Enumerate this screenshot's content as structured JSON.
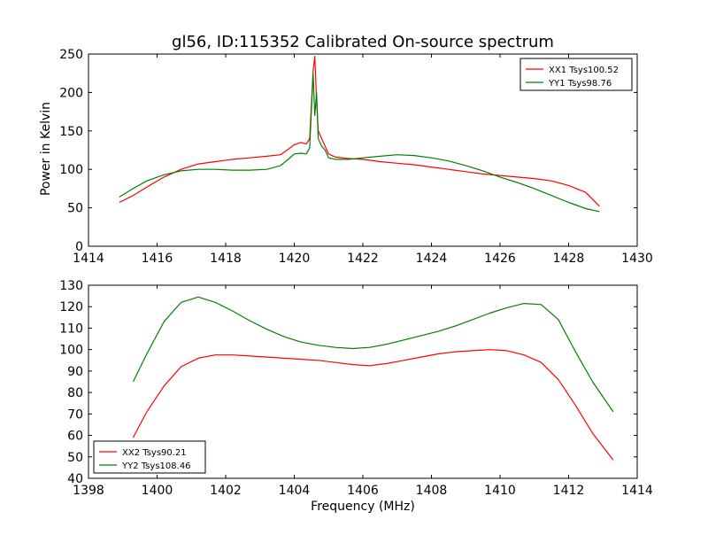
{
  "figure": {
    "title": "gl56, ID:115352 Calibrated On-source spectrum",
    "ylabel": "Power in Kelvin",
    "xlabel": "Frequency (MHz)"
  },
  "chart_data": [
    {
      "type": "line",
      "title": "gl56, ID:115352 Calibrated On-source spectrum",
      "xlabel": "",
      "ylabel": "Power in Kelvin",
      "xlim": [
        1414,
        1430
      ],
      "ylim": [
        0,
        250
      ],
      "xticks": [
        1414,
        1416,
        1418,
        1420,
        1422,
        1424,
        1426,
        1428,
        1430
      ],
      "yticks": [
        0,
        50,
        100,
        150,
        200,
        250
      ],
      "grid": false,
      "legend_position": "upper right",
      "series": [
        {
          "name": "XX1 Tsys100.52",
          "color": "#ff0000",
          "x": [
            1414.9,
            1415.3,
            1415.7,
            1416.2,
            1416.7,
            1417.2,
            1417.7,
            1418.2,
            1418.7,
            1419.2,
            1419.6,
            1419.85,
            1420.0,
            1420.2,
            1420.35,
            1420.45,
            1420.55,
            1420.6,
            1420.65,
            1420.7,
            1420.8,
            1420.9,
            1421.0,
            1421.2,
            1421.6,
            1422.0,
            1422.5,
            1423.0,
            1423.5,
            1424.0,
            1424.5,
            1425.0,
            1425.5,
            1426.0,
            1426.5,
            1427.0,
            1427.5,
            1428.0,
            1428.5,
            1428.9
          ],
          "y": [
            57,
            66,
            77,
            90,
            100,
            107,
            110,
            113,
            115,
            117,
            119,
            127,
            132,
            135,
            133,
            140,
            228,
            247,
            190,
            150,
            140,
            130,
            120,
            116,
            114,
            113,
            110,
            108,
            106,
            103,
            100,
            97,
            94,
            92,
            90,
            88,
            85,
            79,
            70,
            52
          ]
        },
        {
          "name": "YY1 Tsys98.76",
          "color": "#008000",
          "x": [
            1414.9,
            1415.3,
            1415.7,
            1416.2,
            1416.7,
            1417.2,
            1417.7,
            1418.2,
            1418.7,
            1419.2,
            1419.6,
            1419.85,
            1420.0,
            1420.2,
            1420.35,
            1420.45,
            1420.55,
            1420.6,
            1420.65,
            1420.7,
            1420.8,
            1420.9,
            1421.0,
            1421.2,
            1421.6,
            1422.0,
            1422.5,
            1423.0,
            1423.5,
            1424.0,
            1424.5,
            1425.0,
            1425.5,
            1426.0,
            1426.5,
            1427.0,
            1427.5,
            1428.0,
            1428.5,
            1428.9
          ],
          "y": [
            64,
            75,
            85,
            93,
            98,
            100,
            100,
            99,
            99,
            100,
            105,
            114,
            120,
            121,
            120,
            128,
            225,
            170,
            200,
            140,
            130,
            125,
            115,
            113,
            113,
            115,
            117,
            119,
            118,
            115,
            111,
            105,
            98,
            90,
            83,
            75,
            66,
            57,
            49,
            45
          ]
        }
      ]
    },
    {
      "type": "line",
      "title": "",
      "xlabel": "Frequency (MHz)",
      "ylabel": "",
      "xlim": [
        1398,
        1414
      ],
      "ylim": [
        40,
        130
      ],
      "xticks": [
        1398,
        1400,
        1402,
        1404,
        1406,
        1408,
        1410,
        1412,
        1414
      ],
      "yticks": [
        40,
        50,
        60,
        70,
        80,
        90,
        100,
        110,
        120,
        130
      ],
      "grid": false,
      "legend_position": "lower left",
      "series": [
        {
          "name": "XX2 Tsys90.21",
          "color": "#ff0000",
          "x": [
            1399.3,
            1399.7,
            1400.2,
            1400.7,
            1401.2,
            1401.7,
            1402.2,
            1402.7,
            1403.2,
            1403.7,
            1404.2,
            1404.7,
            1405.2,
            1405.7,
            1406.2,
            1406.7,
            1407.2,
            1407.7,
            1408.2,
            1408.7,
            1409.2,
            1409.7,
            1410.2,
            1410.7,
            1411.2,
            1411.7,
            1412.2,
            1412.7,
            1413.3
          ],
          "y": [
            59,
            71,
            83,
            92,
            96,
            97.5,
            97.5,
            97,
            96.5,
            96,
            95.5,
            95,
            94,
            93,
            92.5,
            93.5,
            95,
            96.5,
            98,
            99,
            99.5,
            100,
            99.5,
            97.5,
            94,
            86,
            74,
            61,
            48.5
          ]
        },
        {
          "name": "YY2 Tsys108.46",
          "color": "#008000",
          "x": [
            1399.3,
            1399.7,
            1400.2,
            1400.7,
            1401.2,
            1401.7,
            1402.2,
            1402.7,
            1403.2,
            1403.7,
            1404.2,
            1404.7,
            1405.2,
            1405.7,
            1406.2,
            1406.7,
            1407.2,
            1407.7,
            1408.2,
            1408.7,
            1409.2,
            1409.7,
            1410.2,
            1410.7,
            1411.2,
            1411.7,
            1412.2,
            1412.7,
            1413.3
          ],
          "y": [
            85,
            98,
            113,
            122,
            124.5,
            122,
            118,
            113.5,
            109.5,
            106,
            103.5,
            102,
            101,
            100.5,
            101,
            102.5,
            104.5,
            106.5,
            108.5,
            111,
            114,
            117,
            119.5,
            121.5,
            121,
            114,
            99,
            85,
            71
          ]
        }
      ]
    }
  ]
}
